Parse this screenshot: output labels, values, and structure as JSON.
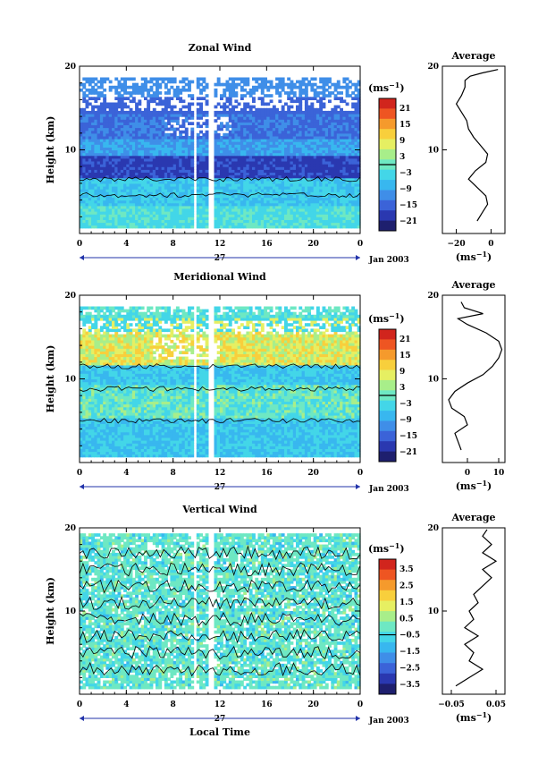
{
  "chart_data": [
    {
      "type": "heatmap",
      "title": "Zonal Wind",
      "ylabel": "Height (km)",
      "ylim": [
        0,
        20
      ],
      "xlim": [
        0,
        24
      ],
      "x_ticks": [
        "0",
        "4",
        "8",
        "12",
        "16",
        "20",
        "0"
      ],
      "y_ticks": [
        "20",
        "10"
      ],
      "day_label": "27",
      "date_label": "Jan 2003",
      "colorbar": {
        "unit": "(ms",
        "unit_exp": "−1",
        "ticks": [
          "21",
          "15",
          "9",
          "3",
          "−3",
          "−9",
          "−15",
          "−21"
        ]
      },
      "average": {
        "title": "Average",
        "x_ticks": [
          "−20",
          "0"
        ],
        "xlabel": "(ms",
        "xlabel_exp": "−1",
        "xlim": [
          -28,
          8
        ],
        "profile": [
          [
            -8,
            1.5
          ],
          [
            -5,
            2.5
          ],
          [
            -2,
            3.5
          ],
          [
            -3,
            4.5
          ],
          [
            -8,
            5.5
          ],
          [
            -13,
            6.5
          ],
          [
            -9,
            7.5
          ],
          [
            -3,
            8.5
          ],
          [
            -2,
            9.5
          ],
          [
            -6,
            10.5
          ],
          [
            -10,
            11.5
          ],
          [
            -13,
            12.5
          ],
          [
            -14,
            13.5
          ],
          [
            -17,
            14.5
          ],
          [
            -20,
            15.5
          ],
          [
            -17,
            16.5
          ],
          [
            -15,
            17.5
          ],
          [
            -15,
            18.3
          ],
          [
            -12,
            18.8
          ],
          [
            -5,
            19.2
          ],
          [
            4,
            19.6
          ]
        ]
      }
    },
    {
      "type": "heatmap",
      "title": "Meridional Wind",
      "ylabel": "Height (km)",
      "ylim": [
        0,
        20
      ],
      "xlim": [
        0,
        24
      ],
      "x_ticks": [
        "0",
        "4",
        "8",
        "12",
        "16",
        "20",
        "0"
      ],
      "y_ticks": [
        "20",
        "10"
      ],
      "day_label": "27",
      "date_label": "Jan 2003",
      "colorbar": {
        "unit": "(ms",
        "unit_exp": "−1",
        "ticks": [
          "21",
          "15",
          "9",
          "3",
          "−3",
          "−9",
          "−15",
          "−21"
        ]
      },
      "average": {
        "title": "Average",
        "x_ticks": [
          "0",
          "10"
        ],
        "xlabel": "(ms",
        "xlabel_exp": "−1",
        "xlim": [
          -8,
          12
        ],
        "profile": [
          [
            -2,
            1.5
          ],
          [
            -3,
            2.5
          ],
          [
            -4,
            3.5
          ],
          [
            0,
            4.5
          ],
          [
            -1,
            5.5
          ],
          [
            -5,
            6.5
          ],
          [
            -6,
            7.5
          ],
          [
            -4,
            8.5
          ],
          [
            0,
            9.5
          ],
          [
            5,
            10.5
          ],
          [
            8,
            11.5
          ],
          [
            10,
            12.5
          ],
          [
            11,
            13.5
          ],
          [
            10,
            14.5
          ],
          [
            6,
            15.5
          ],
          [
            0,
            16.5
          ],
          [
            -3,
            17.2
          ],
          [
            5,
            17.8
          ],
          [
            -1,
            18.5
          ],
          [
            -2,
            19.2
          ]
        ]
      }
    },
    {
      "type": "heatmap",
      "title": "Vertical Wind",
      "xlabel": "Local Time",
      "ylabel": "Height (km)",
      "ylim": [
        0,
        20
      ],
      "xlim": [
        0,
        24
      ],
      "x_ticks": [
        "0",
        "4",
        "8",
        "12",
        "16",
        "20",
        "0"
      ],
      "y_ticks": [
        "20",
        "10"
      ],
      "day_label": "27",
      "date_label": "Jan 2003",
      "colorbar": {
        "unit": "(ms",
        "unit_exp": "−1",
        "ticks": [
          "3.5",
          "2.5",
          "1.5",
          "0.5",
          "−0.5",
          "−1.5",
          "−2.5",
          "−3.5"
        ]
      },
      "average": {
        "title": "Average",
        "x_ticks": [
          "−0.05",
          "0.05"
        ],
        "xlabel": "(ms",
        "xlabel_exp": "−1",
        "xlim": [
          -0.07,
          0.07
        ],
        "profile": [
          [
            -0.04,
            1.0
          ],
          [
            -0.01,
            2.0
          ],
          [
            0.02,
            3.0
          ],
          [
            -0.01,
            4.0
          ],
          [
            0.0,
            5.0
          ],
          [
            -0.02,
            6.0
          ],
          [
            0.01,
            7.0
          ],
          [
            -0.02,
            8.0
          ],
          [
            0.0,
            9.0
          ],
          [
            -0.01,
            10.0
          ],
          [
            0.01,
            11.0
          ],
          [
            0.0,
            12.0
          ],
          [
            0.02,
            13.0
          ],
          [
            0.04,
            14.0
          ],
          [
            0.02,
            15.0
          ],
          [
            0.05,
            16.0
          ],
          [
            0.02,
            17.0
          ],
          [
            0.04,
            18.0
          ],
          [
            0.02,
            19.0
          ],
          [
            0.03,
            19.8
          ]
        ]
      }
    }
  ]
}
